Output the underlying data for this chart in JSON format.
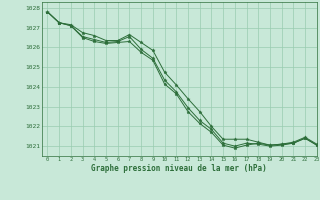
{
  "title": "Graphe pression niveau de la mer (hPa)",
  "background_color": "#c8e8d8",
  "grid_color": "#99ccb0",
  "line_color": "#2d6e3a",
  "marker_color": "#2d6e3a",
  "xlim": [
    -0.5,
    23
  ],
  "ylim": [
    1020.5,
    1028.3
  ],
  "yticks": [
    1021,
    1022,
    1023,
    1024,
    1025,
    1026,
    1027,
    1028
  ],
  "xticks": [
    0,
    1,
    2,
    3,
    4,
    5,
    6,
    7,
    8,
    9,
    10,
    11,
    12,
    13,
    14,
    15,
    16,
    17,
    18,
    19,
    20,
    21,
    22,
    23
  ],
  "series": [
    [
      1027.8,
      1027.25,
      1027.1,
      1026.5,
      1026.3,
      1026.2,
      1026.25,
      1026.3,
      1025.75,
      1025.35,
      1024.15,
      1023.65,
      1022.75,
      1022.15,
      1021.7,
      1021.05,
      1020.9,
      1021.05,
      1021.15,
      1021.05,
      1021.1,
      1021.15,
      1021.4,
      1021.05
    ],
    [
      1027.8,
      1027.25,
      1027.1,
      1026.55,
      1026.4,
      1026.25,
      1026.3,
      1026.55,
      1025.9,
      1025.45,
      1024.35,
      1023.75,
      1022.95,
      1022.3,
      1021.85,
      1021.15,
      1021.0,
      1021.15,
      1021.1,
      1021.0,
      1021.05,
      1021.15,
      1021.4,
      1021.05
    ],
    [
      1027.8,
      1027.25,
      1027.15,
      1026.75,
      1026.6,
      1026.35,
      1026.35,
      1026.65,
      1026.25,
      1025.85,
      1024.75,
      1024.1,
      1023.4,
      1022.75,
      1022.0,
      1021.35,
      1021.35,
      1021.35,
      1021.2,
      1021.05,
      1021.1,
      1021.2,
      1021.45,
      1021.1
    ]
  ],
  "figsize": [
    3.2,
    2.0
  ],
  "dpi": 100
}
